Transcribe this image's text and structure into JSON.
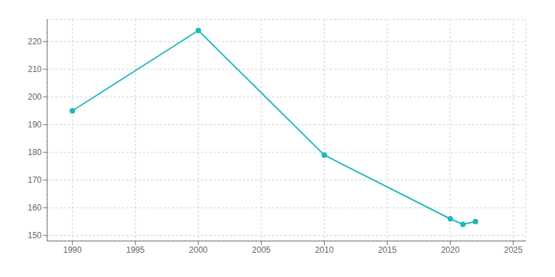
{
  "chart_data": {
    "type": "line",
    "x": [
      1990,
      2000,
      2010,
      2020,
      2021,
      2022
    ],
    "values": [
      195,
      224,
      179,
      156,
      154,
      155
    ],
    "color": "#20b8b8",
    "marker": "circle",
    "xlim": [
      1988,
      2026
    ],
    "ylim": [
      148,
      228
    ],
    "xticks": [
      1990,
      1995,
      2000,
      2005,
      2010,
      2015,
      2020,
      2025
    ],
    "yticks": [
      150,
      160,
      170,
      180,
      190,
      200,
      210,
      220
    ],
    "grid": true
  }
}
